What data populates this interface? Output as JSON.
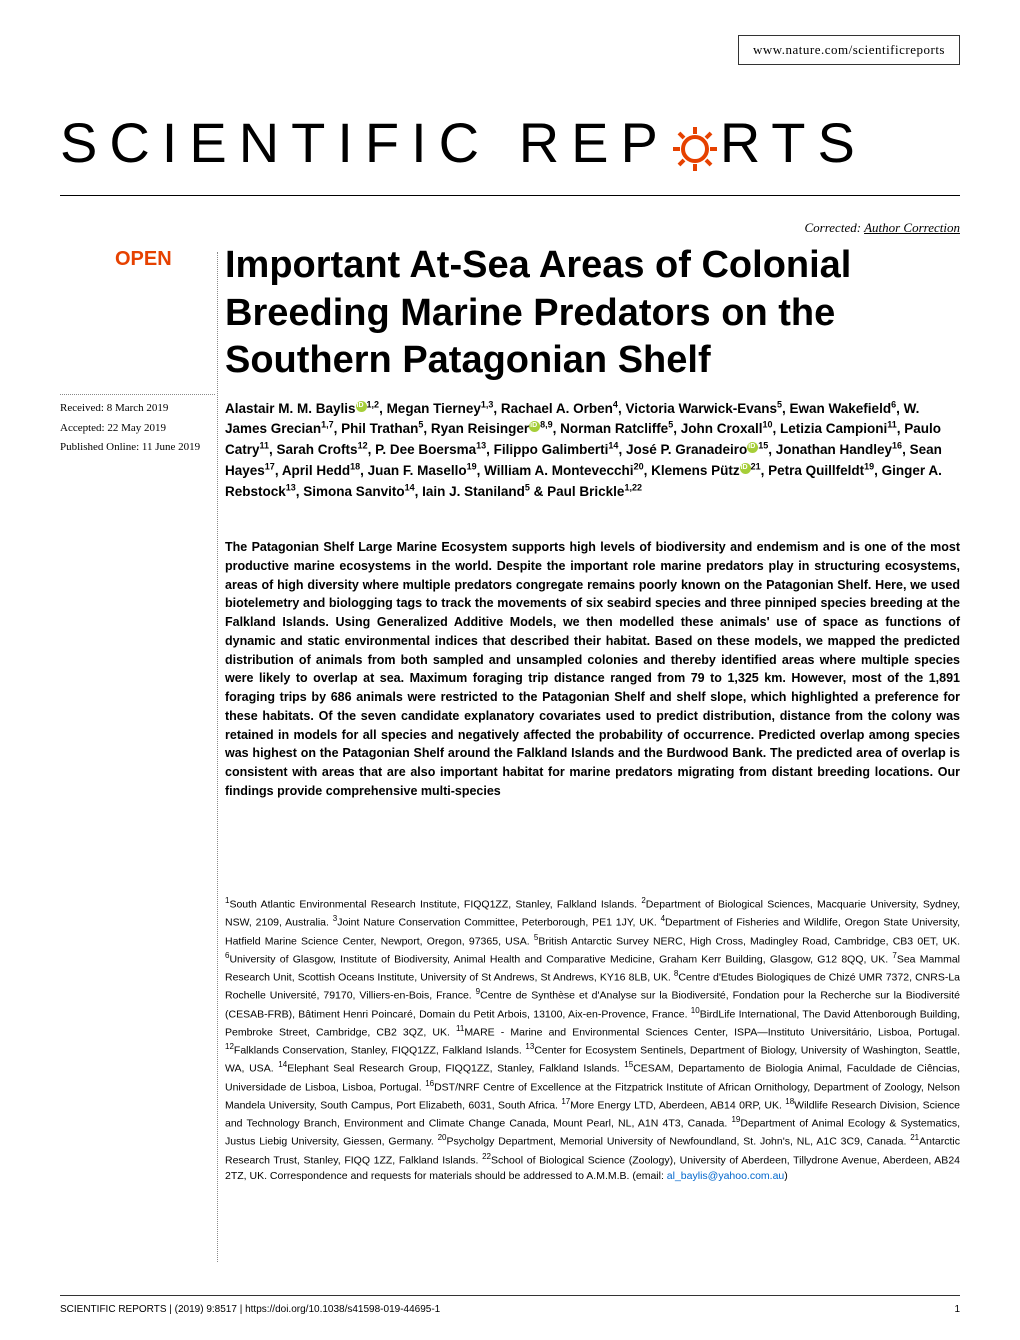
{
  "header": {
    "url": "www.nature.com/scientificreports"
  },
  "logo": {
    "text_before": "SCIENTIFIC ",
    "text_mid": "REP",
    "text_after": "RTS"
  },
  "correction": {
    "prefix": "Corrected: ",
    "link": "Author Correction"
  },
  "open_badge": "OPEN",
  "title": "Important At-Sea Areas of Colonial Breeding Marine Predators on the Southern Patagonian Shelf",
  "meta": {
    "received": "Received: 8 March 2019",
    "accepted": "Accepted: 22 May 2019",
    "published": "Published Online: 11 June 2019"
  },
  "authors_html": "Alastair M. M. Baylis<span class='orcid'></span><sup>1,2</sup>, Megan Tierney<sup>1,3</sup>, Rachael A. Orben<sup>4</sup>, Victoria Warwick-Evans<sup>5</sup>, Ewan Wakefield<sup>6</sup>, W. James Grecian<sup>1,7</sup>, Phil Trathan<sup>5</sup>, Ryan Reisinger<span class='orcid'></span><sup>8,9</sup>, Norman Ratcliffe<sup>5</sup>, John Croxall<sup>10</sup>, Letizia Campioni<sup>11</sup>, Paulo Catry<sup>11</sup>, Sarah Crofts<sup>12</sup>, P. Dee Boersma<sup>13</sup>, Filippo Galimberti<sup>14</sup>, José P. Granadeiro<span class='orcid'></span><sup>15</sup>, Jonathan Handley<sup>16</sup>, Sean Hayes<sup>17</sup>, April Hedd<sup>18</sup>, Juan F. Masello<sup>19</sup>, William A. Montevecchi<sup>20</sup>, Klemens Pütz<span class='orcid'></span><sup>21</sup>, Petra Quillfeldt<sup>19</sup>, Ginger A. Rebstock<sup>13</sup>, Simona Sanvito<sup>14</sup>, Iain J. Staniland<sup>5</sup> & Paul Brickle<sup>1,22</sup>",
  "abstract": "The Patagonian Shelf Large Marine Ecosystem supports high levels of biodiversity and endemism and is one of the most productive marine ecosystems in the world. Despite the important role marine predators play in structuring ecosystems, areas of high diversity where multiple predators congregate remains poorly known on the Patagonian Shelf. Here, we used biotelemetry and biologging tags to track the movements of six seabird species and three pinniped species breeding at the Falkland Islands. Using Generalized Additive Models, we then modelled these animals' use of space as functions of dynamic and static environmental indices that described their habitat. Based on these models, we mapped the predicted distribution of animals from both sampled and unsampled colonies and thereby identified areas where multiple species were likely to overlap at sea. Maximum foraging trip distance ranged from 79 to 1,325 km. However, most of the 1,891 foraging trips by 686 animals were restricted to the Patagonian Shelf and shelf slope, which highlighted a preference for these habitats. Of the seven candidate explanatory covariates used to predict distribution, distance from the colony was retained in models for all species and negatively affected the probability of occurrence. Predicted overlap among species was highest on the Patagonian Shelf around the Falkland Islands and the Burdwood Bank. The predicted area of overlap is consistent with areas that are also important habitat for marine predators migrating from distant breeding locations. Our findings provide comprehensive multi-species",
  "affiliations_html": "<sup>1</sup>South Atlantic Environmental Research Institute, FIQQ1ZZ, Stanley, Falkland Islands. <sup>2</sup>Department of Biological Sciences, Macquarie University, Sydney, NSW, 2109, Australia. <sup>3</sup>Joint Nature Conservation Committee, Peterborough, PE1 1JY, UK. <sup>4</sup>Department of Fisheries and Wildlife, Oregon State University, Hatfield Marine Science Center, Newport, Oregon, 97365, USA. <sup>5</sup>British Antarctic Survey NERC, High Cross, Madingley Road, Cambridge, CB3 0ET, UK. <sup>6</sup>University of Glasgow, Institute of Biodiversity, Animal Health and Comparative Medicine, Graham Kerr Building, Glasgow, G12 8QQ, UK. <sup>7</sup>Sea Mammal Research Unit, Scottish Oceans Institute, University of St Andrews, St Andrews, KY16 8LB, UK. <sup>8</sup>Centre d'Etudes Biologiques de Chizé UMR 7372, CNRS-La Rochelle Université, 79170, Villiers-en-Bois, France. <sup>9</sup>Centre de Synthèse et d'Analyse sur la Biodiversité, Fondation pour la Recherche sur la Biodiversité (CESAB-FRB), Bâtiment Henri Poincaré, Domain du Petit Arbois, 13100, Aix-en-Provence, France. <sup>10</sup>BirdLife International, The David Attenborough Building, Pembroke Street, Cambridge, CB2 3QZ, UK. <sup>11</sup>MARE - Marine and Environmental Sciences Center, ISPA—Instituto Universitário, Lisboa, Portugal. <sup>12</sup>Falklands Conservation, Stanley, FIQQ1ZZ, Falkland Islands. <sup>13</sup>Center for Ecosystem Sentinels, Department of Biology, University of Washington, Seattle, WA, USA. <sup>14</sup>Elephant Seal Research Group, FIQQ1ZZ, Stanley, Falkland Islands. <sup>15</sup>CESAM, Departamento de Biologia Animal, Faculdade de Ciências, Universidade de Lisboa, Lisboa, Portugal. <sup>16</sup>DST/NRF Centre of Excellence at the Fitzpatrick Institute of African Ornithology, Department of Zoology, Nelson Mandela University, South Campus, Port Elizabeth, 6031, South Africa. <sup>17</sup>More Energy LTD, Aberdeen, AB14 0RP, UK. <sup>18</sup>Wildlife Research Division, Science and Technology Branch, Environment and Climate Change Canada, Mount Pearl, NL, A1N 4T3, Canada. <sup>19</sup>Department of Animal Ecology & Systematics, Justus Liebig University, Giessen, Germany. <sup>20</sup>Psycholgy Department, Memorial University of Newfoundland, St. John's, NL, A1C 3C9, Canada. <sup>21</sup>Antarctic Research Trust, Stanley, FIQQ 1ZZ, Falkland Islands. <sup>22</sup>School of Biological Science (Zoology), University of Aberdeen, Tillydrone Avenue, Aberdeen, AB24 2TZ, UK. Correspondence and requests for materials should be addressed to A.M.M.B. (email: <span class='email-link'>al_baylis@yahoo.com.au</span>)",
  "footer": {
    "citation": "SCIENTIFIC REPORTS | (2019) 9:8517 | https://doi.org/10.1038/s41598-019-44695-1",
    "page": "1"
  },
  "colors": {
    "open_badge": "#e64100",
    "orcid": "#a6ce39",
    "link": "#0066cc"
  }
}
